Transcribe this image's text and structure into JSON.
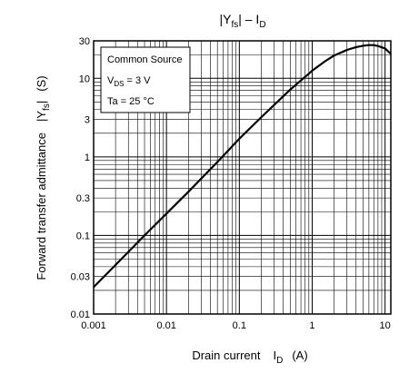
{
  "chart_data": {
    "type": "line",
    "title": {
      "main": "|Y",
      "main_sub": "fs",
      "tail": "| – I",
      "tail_sub": "D"
    },
    "xlabel": {
      "main": "Drain current",
      "sym": "I",
      "sym_sub": "D",
      "unit": "(A)"
    },
    "ylabel": {
      "main": "Forward transfer admittance",
      "sym": "|Y",
      "sym_sub": "fs",
      "sym_tail": "|",
      "unit": "(S)"
    },
    "xscale": "log",
    "yscale": "log",
    "xlim": [
      0.001,
      12
    ],
    "ylim": [
      0.01,
      30
    ],
    "xticks": [
      0.001,
      0.01,
      0.1,
      1,
      10
    ],
    "xtick_labels": [
      "0.001",
      "0.01",
      "0.1",
      "1",
      "10"
    ],
    "yticks": [
      0.01,
      0.03,
      0.1,
      0.3,
      1,
      3,
      10,
      30
    ],
    "ytick_labels": [
      "0.01",
      "0.03",
      "0.1",
      "0.3",
      "1",
      "3",
      "10",
      "30"
    ],
    "grid": true,
    "legend_box": {
      "position": "top-left",
      "line1": "Common Source",
      "line2_main": "V",
      "line2_sub": "DS",
      "line2_tail": " = 3 V",
      "line3": "Ta = 25 °C"
    },
    "series": [
      {
        "x": [
          0.001,
          0.002,
          0.005,
          0.01,
          0.02,
          0.05,
          0.1,
          0.2,
          0.5,
          1,
          1.5,
          2,
          3,
          4,
          5,
          6,
          7,
          8,
          10,
          12
        ],
        "y": [
          0.022,
          0.042,
          0.1,
          0.19,
          0.36,
          0.86,
          1.7,
          3.2,
          7.2,
          12.5,
          16.5,
          19.5,
          23,
          25,
          26,
          26.5,
          26.5,
          25.8,
          24,
          20.5
        ]
      }
    ]
  }
}
